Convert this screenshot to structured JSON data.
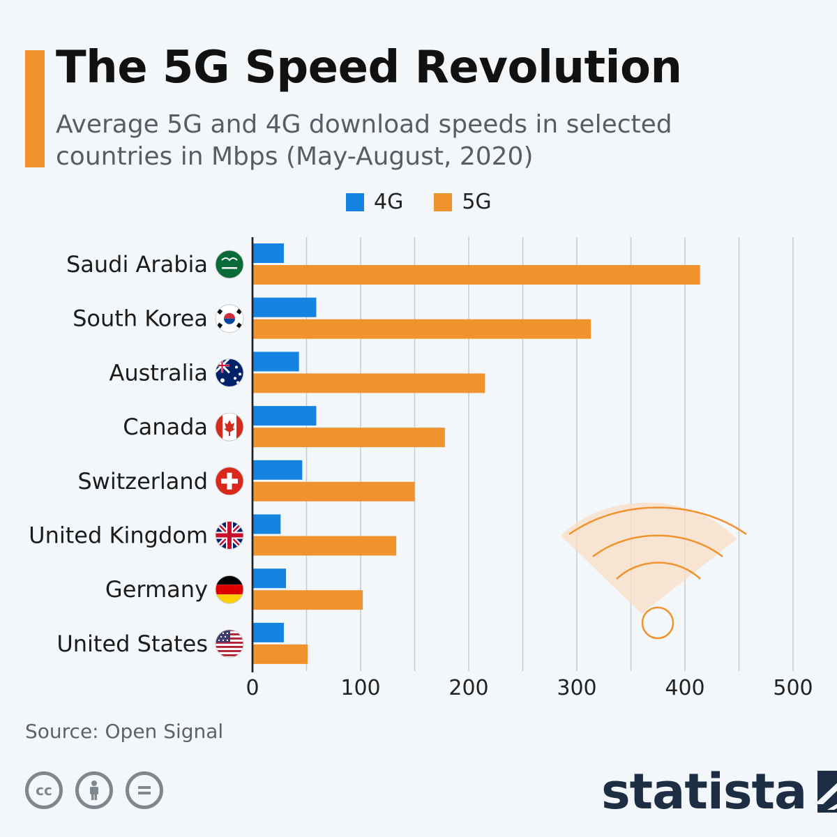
{
  "header": {
    "title": "The 5G Speed Revolution",
    "subtitle": "Average 5G and 4G download speeds in selected countries in Mbps (May-August, 2020)"
  },
  "colors": {
    "accent": "#f0922e",
    "series_4g": "#1584e0",
    "series_5g": "#f0922e",
    "grid": "#c7cbcf",
    "axis": "#222222"
  },
  "legend": {
    "items": [
      {
        "label": "4G",
        "color": "#1584e0"
      },
      {
        "label": "5G",
        "color": "#f0922e"
      }
    ]
  },
  "chart_data": {
    "type": "bar",
    "orientation": "horizontal",
    "categories": [
      "Saudi Arabia",
      "South Korea",
      "Australia",
      "Canada",
      "Switzerland",
      "United Kingdom",
      "Germany",
      "United States"
    ],
    "series": [
      {
        "name": "4G",
        "values": [
          29,
          59,
          43,
          59,
          46,
          26,
          31,
          29
        ]
      },
      {
        "name": "5G",
        "values": [
          414,
          313,
          215,
          178,
          150,
          133,
          102,
          51
        ]
      }
    ],
    "xlim": [
      0,
      500
    ],
    "xticks": [
      0,
      100,
      200,
      300,
      400,
      500
    ],
    "grid": true,
    "legend_position": "top-center",
    "flag_icons": [
      "saudi-arabia-flag-icon",
      "south-korea-flag-icon",
      "australia-flag-icon",
      "canada-flag-icon",
      "switzerland-flag-icon",
      "united-kingdom-flag-icon",
      "germany-flag-icon",
      "united-states-flag-icon"
    ]
  },
  "footer": {
    "source": "Source: Open Signal",
    "license_icons": [
      "cc-icon",
      "attribution-icon",
      "no-derivatives-icon"
    ],
    "brand": "statista",
    "brand_logo_icon": "statista-logo-icon"
  }
}
